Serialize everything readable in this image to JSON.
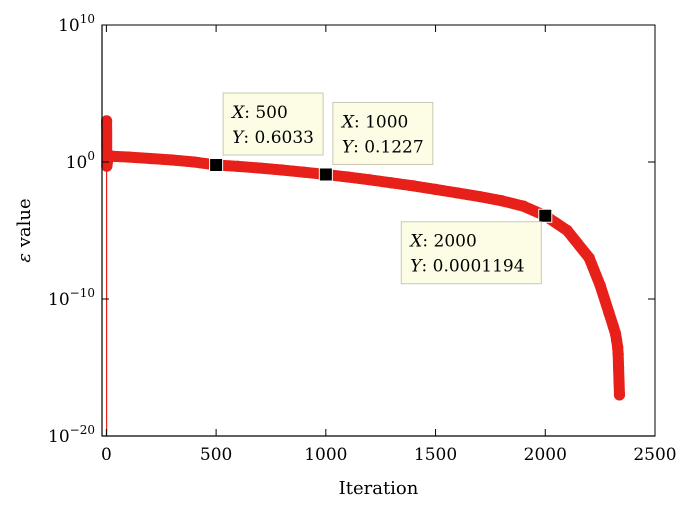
{
  "chart_data": {
    "type": "scatter",
    "title": "",
    "xlabel": "Iteration",
    "ylabel_symbol": "ε",
    "ylabel_text": " value",
    "y_scale": "log",
    "xlim": [
      -20,
      2500
    ],
    "ylim_exp": [
      -20,
      10
    ],
    "x_ticks": [
      0,
      500,
      1000,
      1500,
      2000,
      2500
    ],
    "y_tick_exps": [
      -20,
      -10,
      0,
      10
    ],
    "grid": false,
    "colors": {
      "series": "#e8201a",
      "marker": "#000000",
      "tip_bg": "#fdfde6",
      "tip_border": "#c8c8b4"
    },
    "series": [
      {
        "style": "stem-circle",
        "points": [
          {
            "x": 1,
            "y": 1000
          },
          {
            "x": 2,
            "y": 0.5
          },
          {
            "x": 10,
            "y": 3.0
          },
          {
            "x": 30,
            "y": 2.6
          },
          {
            "x": 100,
            "y": 2.3
          },
          {
            "x": 200,
            "y": 1.8
          },
          {
            "x": 300,
            "y": 1.4
          },
          {
            "x": 400,
            "y": 1.0
          },
          {
            "x": 500,
            "y": 0.6033
          },
          {
            "x": 600,
            "y": 0.48
          },
          {
            "x": 700,
            "y": 0.36
          },
          {
            "x": 800,
            "y": 0.26
          },
          {
            "x": 900,
            "y": 0.18
          },
          {
            "x": 1000,
            "y": 0.1227
          },
          {
            "x": 1100,
            "y": 0.08
          },
          {
            "x": 1200,
            "y": 0.05
          },
          {
            "x": 1300,
            "y": 0.03
          },
          {
            "x": 1400,
            "y": 0.018
          },
          {
            "x": 1500,
            "y": 0.01
          },
          {
            "x": 1600,
            "y": 0.0055
          },
          {
            "x": 1700,
            "y": 0.003
          },
          {
            "x": 1800,
            "y": 0.0015
          },
          {
            "x": 1900,
            "y": 0.0006
          },
          {
            "x": 2000,
            "y": 0.0001194
          },
          {
            "x": 2100,
            "y": 1e-05
          },
          {
            "x": 2200,
            "y": 1e-07
          },
          {
            "x": 2250,
            "y": 1e-09
          },
          {
            "x": 2290,
            "y": 1e-11
          },
          {
            "x": 2310,
            "y": 1e-12
          },
          {
            "x": 2320,
            "y": 3e-13
          },
          {
            "x": 2325,
            "y": 1e-13
          },
          {
            "x": 2330,
            "y": 3e-14
          },
          {
            "x": 2332,
            "y": 1e-14
          },
          {
            "x": 2334,
            "y": 1e-15
          },
          {
            "x": 2336,
            "y": 1e-16
          },
          {
            "x": 2338,
            "y": 1e-17
          }
        ]
      }
    ],
    "datatips": [
      {
        "x": 500,
        "y": 0.6033,
        "x_key": "X",
        "x_text": ": 500",
        "y_key": "Y",
        "y_text": ": 0.6033"
      },
      {
        "x": 1000,
        "y": 0.1227,
        "x_key": "X",
        "x_text": ": 1000",
        "y_key": "Y",
        "y_text": ": 0.1227"
      },
      {
        "x": 2000,
        "y": 0.0001194,
        "x_key": "X",
        "x_text": ": 2000",
        "y_key": "Y",
        "y_text": ": 0.0001194"
      }
    ]
  }
}
